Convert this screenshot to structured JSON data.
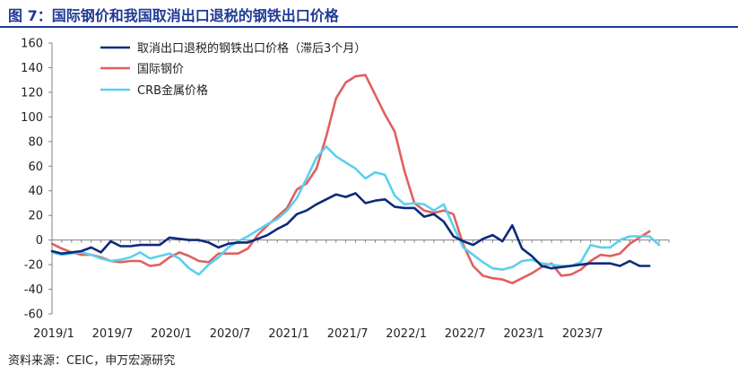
{
  "title": "图 7：国际钢价和我国取消出口退税的钢铁出口价格",
  "source": "资料来源：CEIC，申万宏源研究",
  "chart_data": {
    "type": "line",
    "title": "图 7：国际钢价和我国取消出口退税的钢铁出口价格",
    "xlabel": "",
    "ylabel": "",
    "ylim": [
      -60,
      160
    ],
    "yticks": [
      -60,
      -40,
      -20,
      0,
      20,
      40,
      60,
      80,
      100,
      120,
      140,
      160
    ],
    "x_tick_labels": [
      "2019/1",
      "2019/7",
      "2020/1",
      "2020/7",
      "2021/1",
      "2021/7",
      "2022/1",
      "2022/7",
      "2023/1",
      "2023/7"
    ],
    "x_tick_months": [
      0,
      6,
      12,
      18,
      24,
      30,
      36,
      42,
      48,
      54
    ],
    "x_range_months": [
      0,
      63
    ],
    "grid": false,
    "legend_position": "top-left",
    "series": [
      {
        "name": "取消出口退税的钢铁出口价格（滞后3个月）",
        "color": "#0d2a7a",
        "values": [
          -9,
          -11,
          -10,
          -9,
          -6,
          -10,
          -1,
          -5,
          -5,
          -4,
          -4,
          -4,
          2,
          1,
          0,
          0,
          -2,
          -6,
          -3,
          -2,
          -2,
          1,
          4,
          9,
          13,
          21,
          24,
          29,
          33,
          37,
          35,
          38,
          30,
          32,
          33,
          27,
          26,
          26,
          19,
          21,
          15,
          3,
          -1,
          -4,
          1,
          4,
          -1,
          12,
          -7,
          -13,
          -21,
          -23,
          -22,
          -21,
          -20,
          -19,
          -19,
          -19,
          -21,
          -17,
          -21,
          -21
        ]
      },
      {
        "name": "国际钢价",
        "color": "#e06060",
        "values": [
          -3,
          -7,
          -10,
          -12,
          -12,
          -14,
          -17,
          -18,
          -17,
          -17,
          -21,
          -20,
          -14,
          -10,
          -13,
          -17,
          -18,
          -11,
          -11,
          -11,
          -7,
          4,
          12,
          19,
          26,
          41,
          46,
          58,
          84,
          115,
          128,
          133,
          134,
          118,
          102,
          88,
          56,
          30,
          24,
          22,
          24,
          21,
          -4,
          -21,
          -29,
          -31,
          -32,
          -35,
          -31,
          -27,
          -22,
          -19,
          -29,
          -28,
          -24,
          -17,
          -12,
          -13,
          -11,
          -3,
          2,
          7
        ]
      },
      {
        "name": "CRB金属价格",
        "color": "#5bd0ee",
        "values": [
          -10,
          -12,
          -11,
          -10,
          -12,
          -15,
          -17,
          -16,
          -14,
          -10,
          -15,
          -13,
          -11,
          -15,
          -23,
          -28,
          -20,
          -14,
          -6,
          -1,
          3,
          8,
          13,
          17,
          24,
          34,
          50,
          67,
          76,
          68,
          63,
          58,
          50,
          55,
          53,
          36,
          29,
          30,
          29,
          24,
          29,
          11,
          -6,
          -12,
          -18,
          -23,
          -24,
          -22,
          -17,
          -16,
          -19,
          -20,
          -21,
          -21,
          -18,
          -4,
          -6,
          -6,
          0,
          3,
          3,
          3,
          -4
        ]
      }
    ]
  }
}
